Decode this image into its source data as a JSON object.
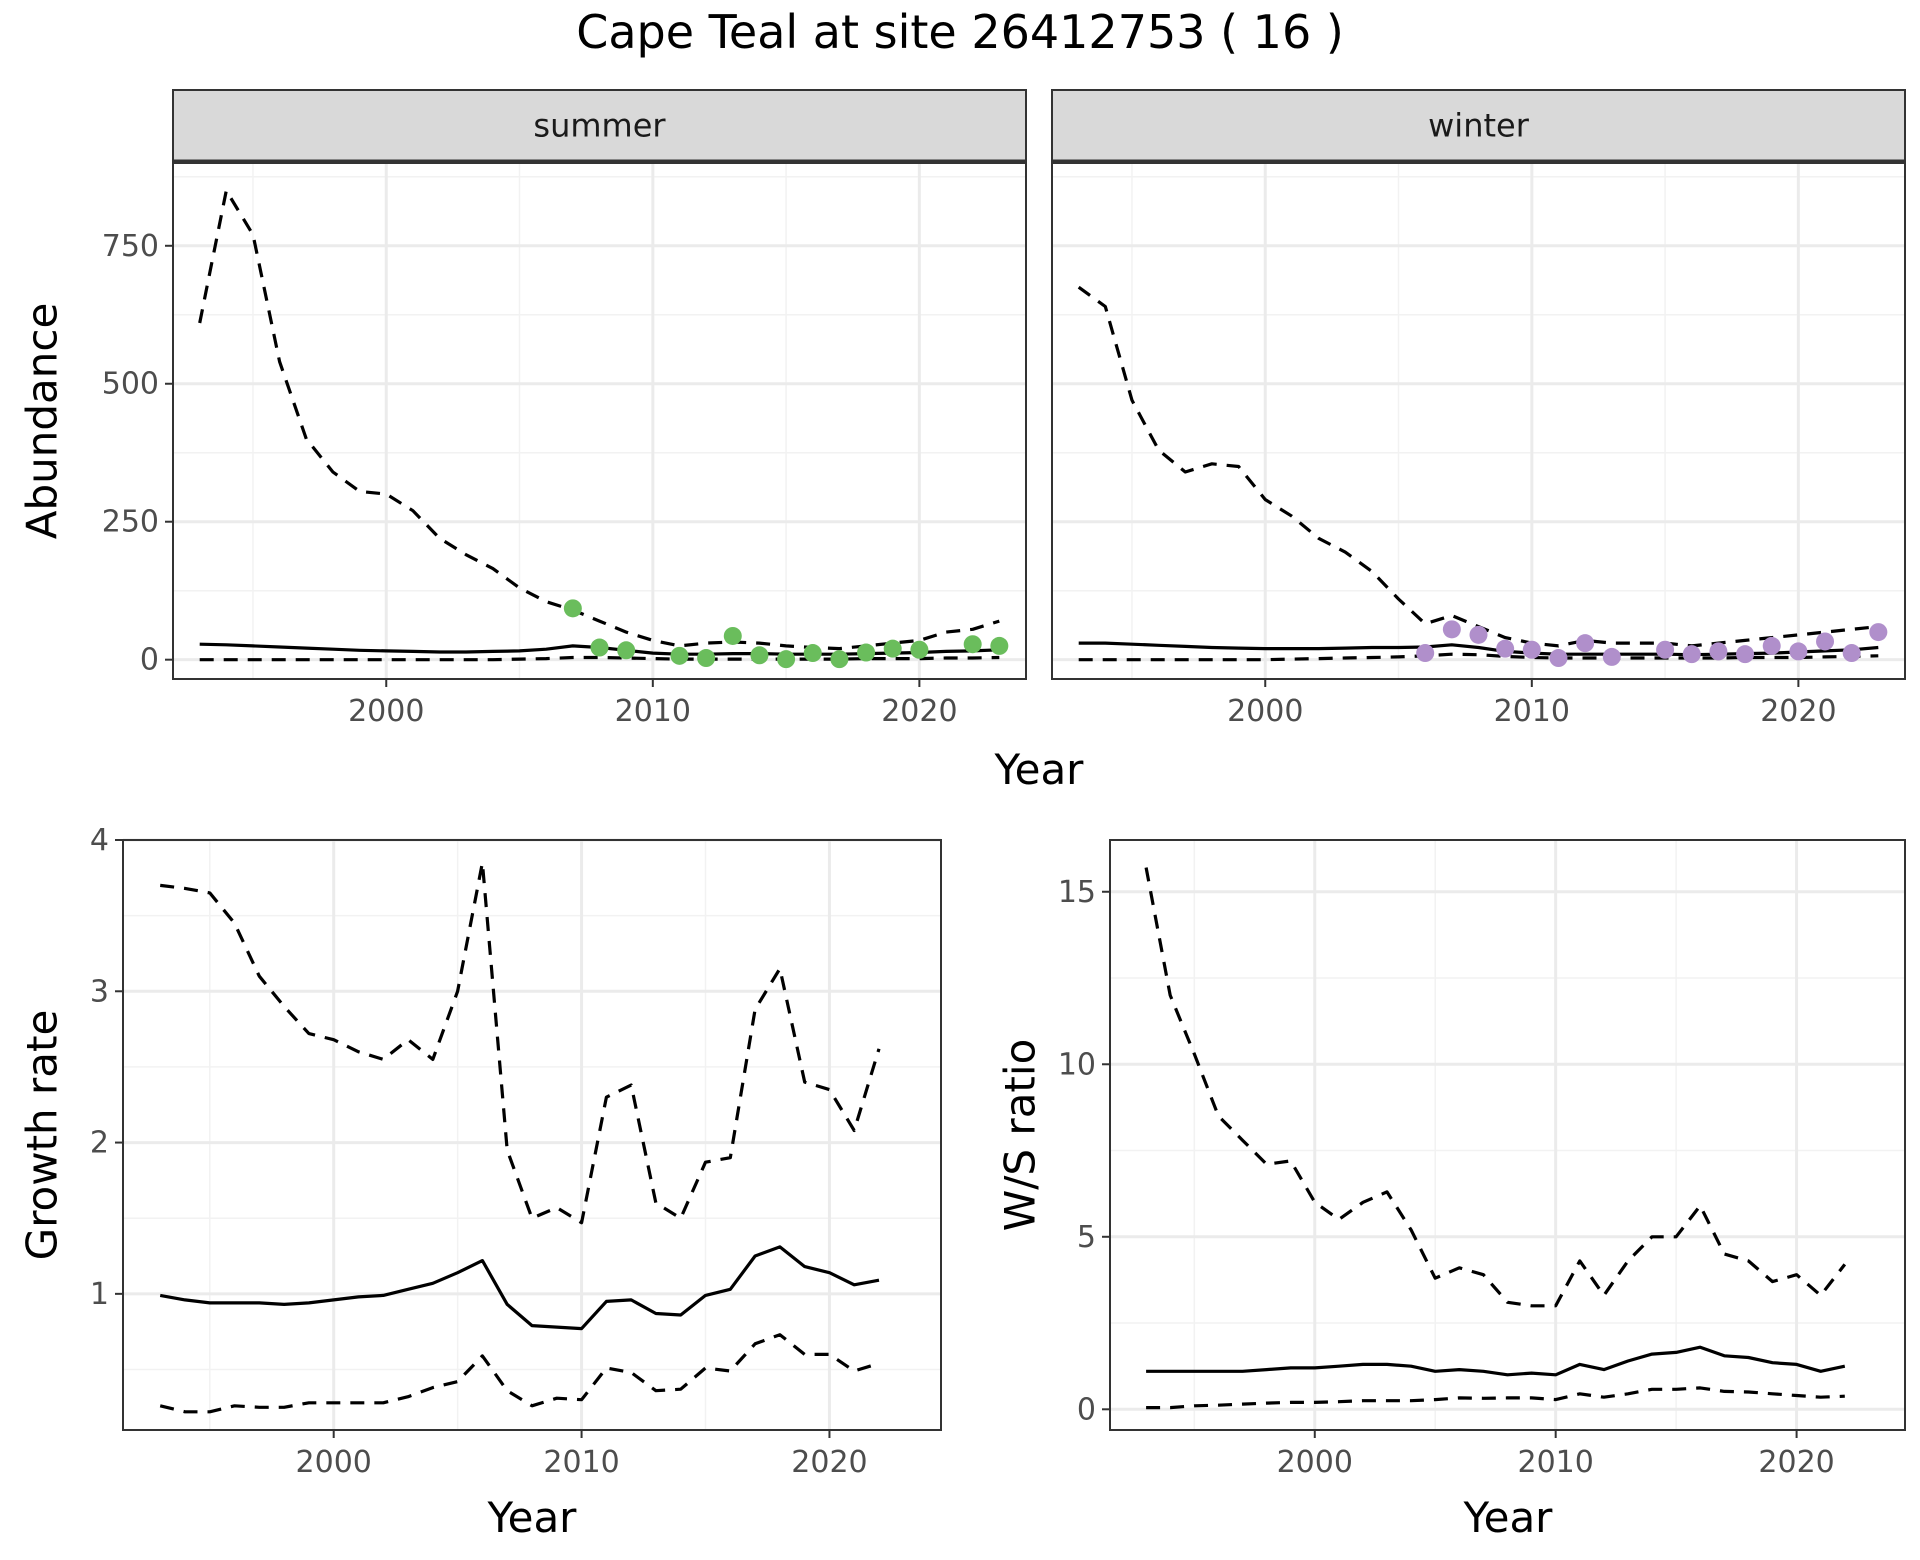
{
  "title": "Cape Teal at site 26412753 ( 16 )",
  "colors": {
    "summer_points": "#6abd5c",
    "winter_points": "#b08fcb",
    "strip_fill": "#d9d9d9"
  },
  "chart_data": [
    {
      "type": "line",
      "facet": "summer",
      "xlabel": "Year",
      "ylabel": "Abundance",
      "xlim": [
        1992,
        2024
      ],
      "ylim": [
        -35,
        900
      ],
      "x_ticks": [
        2000,
        2010,
        2020
      ],
      "y_ticks": [
        0,
        250,
        500,
        750
      ],
      "grid": true,
      "x": [
        1993,
        1994,
        1995,
        1996,
        1997,
        1998,
        1999,
        2000,
        2001,
        2002,
        2003,
        2004,
        2005,
        2006,
        2007,
        2008,
        2009,
        2010,
        2011,
        2012,
        2013,
        2014,
        2015,
        2016,
        2017,
        2018,
        2019,
        2020,
        2021,
        2022,
        2023
      ],
      "series": [
        {
          "style": "dashed",
          "values": [
            610,
            850,
            770,
            540,
            400,
            340,
            305,
            300,
            270,
            220,
            190,
            165,
            130,
            105,
            90,
            70,
            50,
            35,
            25,
            30,
            32,
            30,
            25,
            22,
            20,
            25,
            30,
            35,
            50,
            55,
            70
          ]
        },
        {
          "style": "solid",
          "values": [
            28,
            27,
            25,
            23,
            21,
            19,
            17,
            16,
            15,
            14,
            14,
            15,
            16,
            19,
            25,
            22,
            17,
            12,
            10,
            10,
            11,
            11,
            10,
            10,
            10,
            11,
            12,
            13,
            15,
            16,
            18
          ]
        },
        {
          "style": "dashed",
          "values": [
            0,
            0,
            0,
            0,
            0,
            0,
            0,
            0,
            0,
            0,
            0,
            0,
            1,
            2,
            4,
            4,
            3,
            2,
            1,
            1,
            1,
            1,
            1,
            1,
            1,
            2,
            2,
            2,
            3,
            3,
            4
          ]
        }
      ],
      "points": {
        "x": [
          2007,
          2008,
          2009,
          2011,
          2012,
          2013,
          2014,
          2015,
          2016,
          2017,
          2018,
          2019,
          2020,
          2022,
          2023
        ],
        "y": [
          93,
          22,
          17,
          7,
          3,
          43,
          8,
          1,
          12,
          1,
          13,
          20,
          18,
          28,
          25
        ]
      }
    },
    {
      "type": "line",
      "facet": "winter",
      "xlabel": "Year",
      "ylabel": "Abundance",
      "xlim": [
        1992,
        2024
      ],
      "ylim": [
        -35,
        900
      ],
      "x_ticks": [
        2000,
        2010,
        2020
      ],
      "y_ticks": [
        0,
        250,
        500,
        750
      ],
      "grid": true,
      "x": [
        1993,
        1994,
        1995,
        1996,
        1997,
        1998,
        1999,
        2000,
        2001,
        2002,
        2003,
        2004,
        2005,
        2006,
        2007,
        2008,
        2009,
        2010,
        2011,
        2012,
        2013,
        2014,
        2015,
        2016,
        2017,
        2018,
        2019,
        2020,
        2021,
        2022,
        2023
      ],
      "series": [
        {
          "style": "dashed",
          "values": [
            675,
            640,
            470,
            380,
            340,
            355,
            350,
            290,
            260,
            220,
            195,
            160,
            110,
            65,
            80,
            60,
            40,
            30,
            25,
            35,
            30,
            30,
            30,
            25,
            30,
            35,
            40,
            45,
            50,
            55,
            60
          ]
        },
        {
          "style": "solid",
          "values": [
            30,
            30,
            28,
            26,
            24,
            22,
            21,
            20,
            20,
            20,
            21,
            22,
            22,
            23,
            27,
            22,
            15,
            12,
            10,
            10,
            10,
            10,
            10,
            9,
            10,
            11,
            12,
            14,
            16,
            18,
            22
          ]
        },
        {
          "style": "dashed",
          "values": [
            0,
            0,
            0,
            0,
            0,
            0,
            0,
            0,
            1,
            2,
            3,
            4,
            5,
            7,
            10,
            9,
            6,
            4,
            3,
            3,
            3,
            3,
            3,
            3,
            3,
            4,
            4,
            4,
            5,
            6,
            7
          ]
        }
      ],
      "points": {
        "x": [
          2006,
          2007,
          2008,
          2009,
          2010,
          2011,
          2012,
          2013,
          2015,
          2016,
          2017,
          2018,
          2019,
          2020,
          2021,
          2022,
          2023
        ],
        "y": [
          12,
          55,
          45,
          20,
          18,
          3,
          30,
          5,
          18,
          10,
          15,
          10,
          25,
          15,
          33,
          12,
          50
        ]
      }
    },
    {
      "type": "line",
      "xlabel": "Year",
      "ylabel": "Growth rate",
      "xlim": [
        1991.5,
        2024.5
      ],
      "ylim": [
        0.1,
        4.0
      ],
      "x_ticks": [
        2000,
        2010,
        2020
      ],
      "y_ticks": [
        1,
        2,
        3,
        4
      ],
      "grid": true,
      "x": [
        1993,
        1994,
        1995,
        1996,
        1997,
        1998,
        1999,
        2000,
        2001,
        2002,
        2003,
        2004,
        2005,
        2006,
        2007,
        2008,
        2009,
        2010,
        2011,
        2012,
        2013,
        2014,
        2015,
        2016,
        2017,
        2018,
        2019,
        2020,
        2021,
        2022
      ],
      "series": [
        {
          "style": "dashed",
          "values": [
            3.7,
            3.68,
            3.65,
            3.45,
            3.1,
            2.9,
            2.72,
            2.68,
            2.6,
            2.55,
            2.68,
            2.55,
            3.0,
            3.85,
            1.95,
            1.5,
            1.57,
            1.47,
            2.3,
            2.38,
            1.6,
            1.5,
            1.87,
            1.9,
            2.88,
            3.15,
            2.4,
            2.35,
            2.08,
            2.62
          ]
        },
        {
          "style": "solid",
          "values": [
            0.99,
            0.96,
            0.94,
            0.94,
            0.94,
            0.93,
            0.94,
            0.96,
            0.98,
            0.99,
            1.03,
            1.07,
            1.14,
            1.22,
            0.93,
            0.79,
            0.78,
            0.77,
            0.95,
            0.96,
            0.87,
            0.86,
            0.99,
            1.03,
            1.25,
            1.31,
            1.18,
            1.14,
            1.06,
            1.09
          ]
        },
        {
          "style": "dashed",
          "values": [
            0.26,
            0.22,
            0.22,
            0.26,
            0.25,
            0.25,
            0.28,
            0.28,
            0.28,
            0.28,
            0.32,
            0.38,
            0.42,
            0.59,
            0.36,
            0.26,
            0.31,
            0.3,
            0.51,
            0.48,
            0.36,
            0.37,
            0.51,
            0.49,
            0.67,
            0.73,
            0.6,
            0.6,
            0.49,
            0.54
          ]
        }
      ]
    },
    {
      "type": "line",
      "xlabel": "Year",
      "ylabel": "W/S ratio",
      "xlim": [
        1991.5,
        2024.5
      ],
      "ylim": [
        -0.6,
        16.5
      ],
      "x_ticks": [
        2000,
        2010,
        2020
      ],
      "y_ticks": [
        0,
        5,
        10,
        15
      ],
      "grid": true,
      "x": [
        1993,
        1994,
        1995,
        1996,
        1997,
        1998,
        1999,
        2000,
        2001,
        2002,
        2003,
        2004,
        2005,
        2006,
        2007,
        2008,
        2009,
        2010,
        2011,
        2012,
        2013,
        2014,
        2015,
        2016,
        2017,
        2018,
        2019,
        2020,
        2021,
        2022
      ],
      "series": [
        {
          "style": "dashed",
          "values": [
            15.7,
            12.0,
            10.3,
            8.5,
            7.8,
            7.1,
            7.2,
            6.0,
            5.5,
            6.0,
            6.3,
            5.2,
            3.8,
            4.1,
            3.9,
            3.1,
            3.0,
            3.0,
            4.3,
            3.3,
            4.3,
            5.0,
            5.0,
            5.9,
            4.5,
            4.3,
            3.7,
            3.9,
            3.3,
            4.2
          ]
        },
        {
          "style": "solid",
          "values": [
            1.1,
            1.1,
            1.1,
            1.1,
            1.1,
            1.15,
            1.2,
            1.2,
            1.25,
            1.3,
            1.3,
            1.25,
            1.1,
            1.15,
            1.1,
            1.0,
            1.05,
            1.0,
            1.3,
            1.15,
            1.4,
            1.6,
            1.65,
            1.8,
            1.55,
            1.5,
            1.35,
            1.3,
            1.1,
            1.25
          ]
        },
        {
          "style": "dashed",
          "values": [
            0.05,
            0.05,
            0.1,
            0.12,
            0.15,
            0.18,
            0.2,
            0.2,
            0.22,
            0.25,
            0.25,
            0.25,
            0.28,
            0.33,
            0.32,
            0.33,
            0.33,
            0.28,
            0.45,
            0.35,
            0.45,
            0.58,
            0.58,
            0.62,
            0.52,
            0.5,
            0.45,
            0.4,
            0.35,
            0.38
          ]
        }
      ]
    }
  ]
}
